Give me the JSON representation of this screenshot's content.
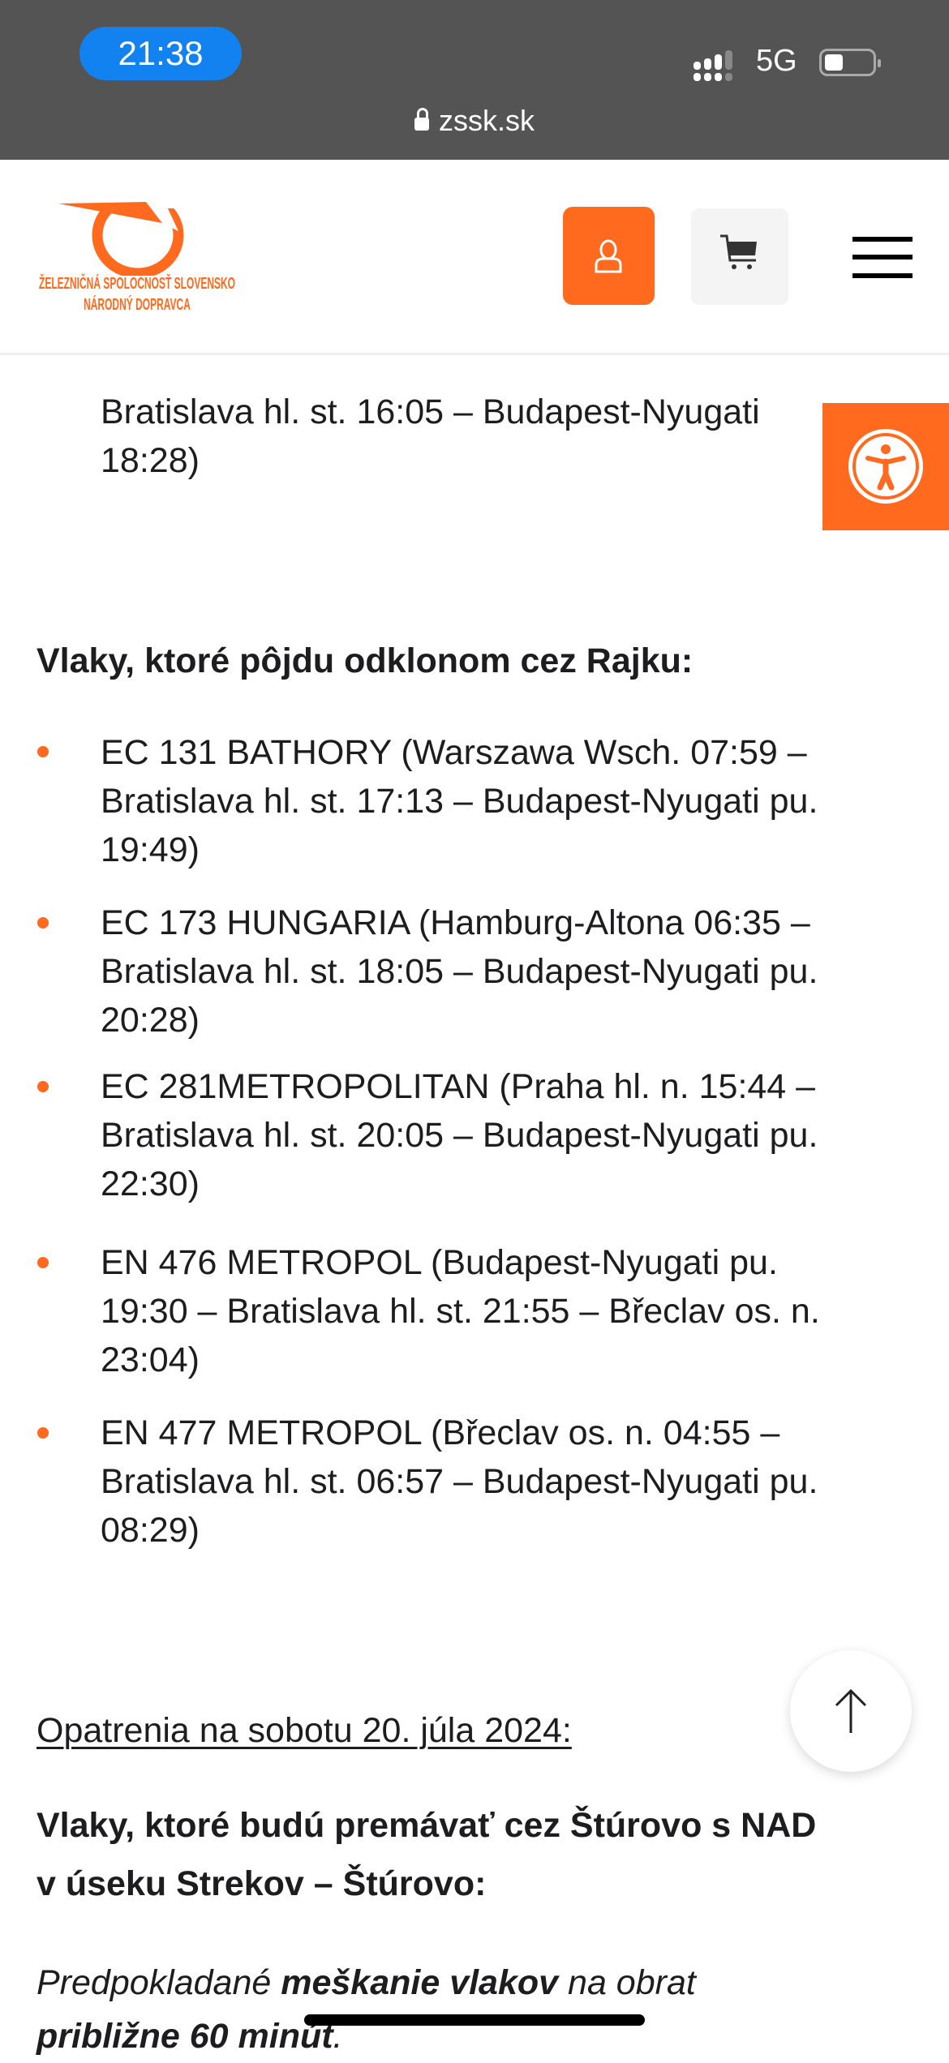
{
  "status_bar": {
    "time": "21:38",
    "network": "5G",
    "url": "zssk.sk"
  },
  "header": {
    "logo_line1": "ŽELEZNIČNÁ SPOLOČNOSŤ SLOVENSKO",
    "logo_line2": "NÁRODNÝ DOPRAVCA",
    "accent_color": "#ff6a1f"
  },
  "content": {
    "previous_item_tail": [
      "Bratislava hl. st. 16:05 – Budapest-Nyugati",
      "18:28)"
    ],
    "heading_rajka": "Vlaky, ktoré pôjdu odklonom cez Rajku:",
    "rajka_trains": [
      {
        "lines": [
          "EC 131 BATHORY (Warszawa Wsch. 07:59 –",
          "Bratislava hl. st. 17:13 – Budapest-Nyugati pu.",
          "19:49)"
        ]
      },
      {
        "lines": [
          "EC 173 HUNGARIA (Hamburg-Altona 06:35 –",
          "Bratislava hl. st. 18:05 – Budapest-Nyugati pu.",
          "20:28)"
        ]
      },
      {
        "lines": [
          "EC 281METROPOLITAN (Praha hl. n. 15:44 –",
          "Bratislava hl. st. 20:05 – Budapest-Nyugati pu.",
          "22:30)"
        ]
      },
      {
        "lines": [
          "EN 476 METROPOL (Budapest-Nyugati pu.",
          "19:30 – Bratislava hl. st. 21:55 – Břeclav os. n.",
          "23:04)"
        ]
      },
      {
        "lines": [
          "EN 477 METROPOL (Břeclav os. n. 04:55 –",
          "Bratislava hl. st. 06:57 – Budapest-Nyugati pu.",
          "08:29)"
        ]
      }
    ],
    "saturday_link": "Opatrenia na sobotu 20. júla 2024:",
    "heading_sturovo": [
      "Vlaky, ktoré budú premávať cez Štúrovo s NAD",
      "v úseku Strekov – Štúrovo:"
    ],
    "delay_note": {
      "pre": "Predpokladané ",
      "bold": "meškanie vlakov",
      "post": " na obrat",
      "line2_bold": "približne 60 minút",
      "line2_post": "."
    }
  }
}
